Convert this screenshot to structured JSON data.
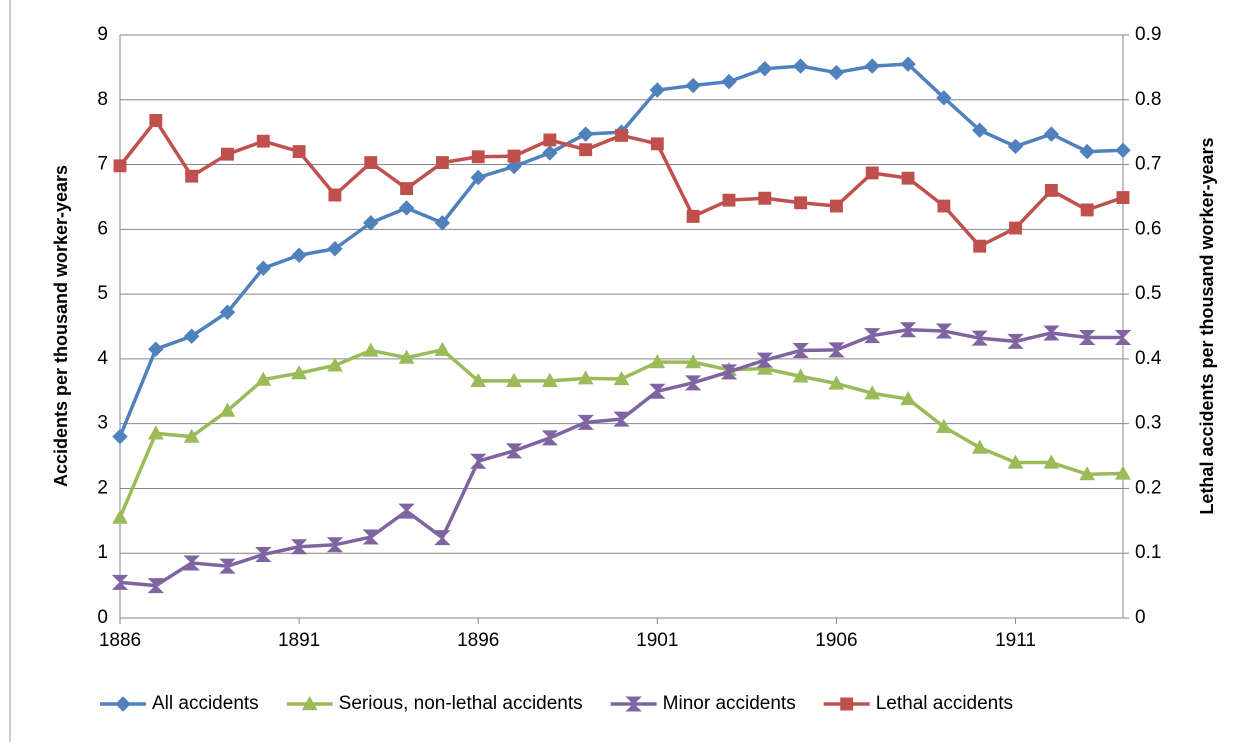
{
  "chart_data": {
    "type": "line",
    "y_label": "Accidents per thousand worker-years",
    "y2_label": "Lethal accidents per thousand worker-years",
    "x": [
      1886,
      1887,
      1888,
      1889,
      1890,
      1891,
      1892,
      1893,
      1894,
      1895,
      1896,
      1897,
      1898,
      1899,
      1900,
      1901,
      1902,
      1903,
      1904,
      1905,
      1906,
      1907,
      1908,
      1909,
      1910,
      1911,
      1912,
      1913,
      1914
    ],
    "xlim": [
      1886,
      1914
    ],
    "xticks": [
      1886,
      1891,
      1896,
      1901,
      1906,
      1911
    ],
    "ylim": [
      0,
      9
    ],
    "yticks": [
      0,
      1,
      2,
      3,
      4,
      5,
      6,
      7,
      8,
      9
    ],
    "y2lim": [
      0,
      0.9
    ],
    "y2ticks": [
      0,
      0.1,
      0.2,
      0.3,
      0.4,
      0.5,
      0.6,
      0.7,
      0.8,
      0.9
    ],
    "grid": true,
    "legend": "bottom",
    "series": [
      {
        "name": "All accidents",
        "color": "#4f81bd",
        "marker": "diamond",
        "values": [
          2.8,
          4.15,
          4.35,
          4.72,
          5.4,
          5.6,
          5.7,
          6.1,
          6.33,
          6.1,
          6.8,
          6.97,
          7.18,
          7.47,
          7.5,
          8.15,
          8.22,
          8.28,
          8.48,
          8.52,
          8.42,
          8.52,
          8.55,
          8.03,
          7.53,
          7.28,
          7.47,
          7.2,
          7.22
        ]
      },
      {
        "name": "Serious, non-lethal accidents",
        "color": "#9bbb59",
        "marker": "triangle",
        "values": [
          1.55,
          2.85,
          2.8,
          3.2,
          3.68,
          3.78,
          3.9,
          4.13,
          4.02,
          4.14,
          3.66,
          3.66,
          3.66,
          3.7,
          3.69,
          3.95,
          3.95,
          3.83,
          3.85,
          3.73,
          3.62,
          3.47,
          3.38,
          2.95,
          2.63,
          2.4,
          2.4,
          2.22,
          2.23
        ]
      },
      {
        "name": "Minor accidents",
        "color": "#8064a2",
        "marker": "hourglass",
        "values": [
          0.55,
          0.5,
          0.85,
          0.8,
          0.98,
          1.1,
          1.13,
          1.25,
          1.65,
          1.24,
          2.42,
          2.58,
          2.78,
          3.02,
          3.07,
          3.5,
          3.63,
          3.8,
          3.98,
          4.13,
          4.14,
          4.36,
          4.45,
          4.43,
          4.32,
          4.27,
          4.4,
          4.33,
          4.33
        ]
      },
      {
        "name": "Lethal accidents",
        "color": "#c0504d",
        "marker": "square",
        "axis": "y2",
        "values": [
          0.698,
          0.768,
          0.682,
          0.716,
          0.736,
          0.72,
          0.653,
          0.703,
          0.663,
          0.703,
          0.712,
          0.713,
          0.738,
          0.723,
          0.745,
          0.732,
          0.62,
          0.645,
          0.648,
          0.641,
          0.636,
          0.687,
          0.679,
          0.636,
          0.574,
          0.602,
          0.66,
          0.63,
          0.649
        ]
      }
    ]
  }
}
